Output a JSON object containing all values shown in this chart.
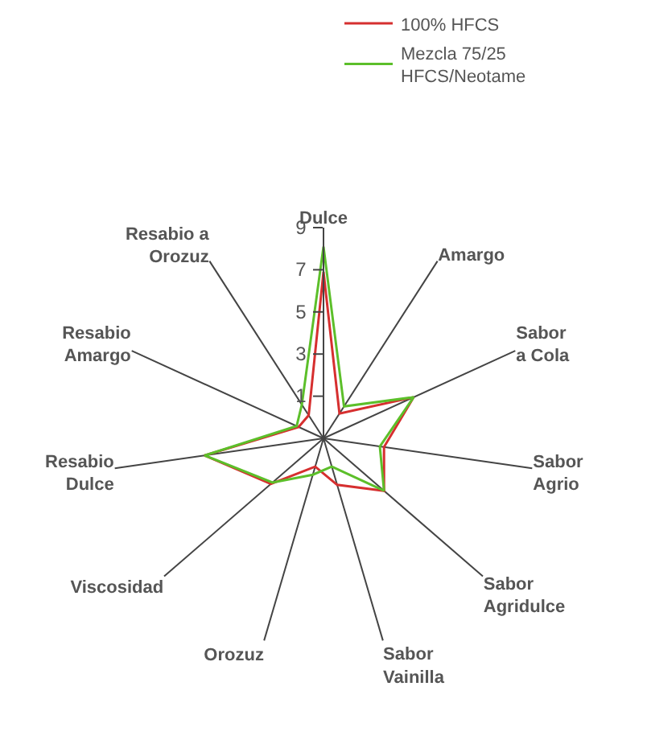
{
  "chart_data": {
    "type": "radar",
    "categories": [
      "Dulce",
      "Amargo",
      "Sabor\na Cola",
      "Sabor\nAgrio",
      "Sabor\nAgridulce",
      "Sabor\nVainilla",
      "Orozuz",
      "Viscosidad",
      "Resabio\nDulce",
      "Resabio\nAmargo",
      "Resabio a\nOrozuz"
    ],
    "series": [
      {
        "name": "100% HFCS",
        "color": "#d62f2f",
        "values": [
          6.9,
          0.4,
          3.7,
          1.9,
          2.8,
          1.3,
          0.4,
          2.3,
          4.7,
          0.3,
          0.3
        ]
      },
      {
        "name": "Mezcla 75/25\nHFCS/Neotame",
        "color": "#5cbf2a",
        "values": [
          8.1,
          0.8,
          3.7,
          1.7,
          2.8,
          0.4,
          0.8,
          2.2,
          4.7,
          0.4,
          0.9
        ]
      }
    ],
    "ylim": [
      -1,
      9
    ],
    "yticks": [
      1,
      3,
      5,
      7,
      9
    ],
    "grid": "x",
    "legend": "top right",
    "marker": "none",
    "line_style": "solid"
  }
}
